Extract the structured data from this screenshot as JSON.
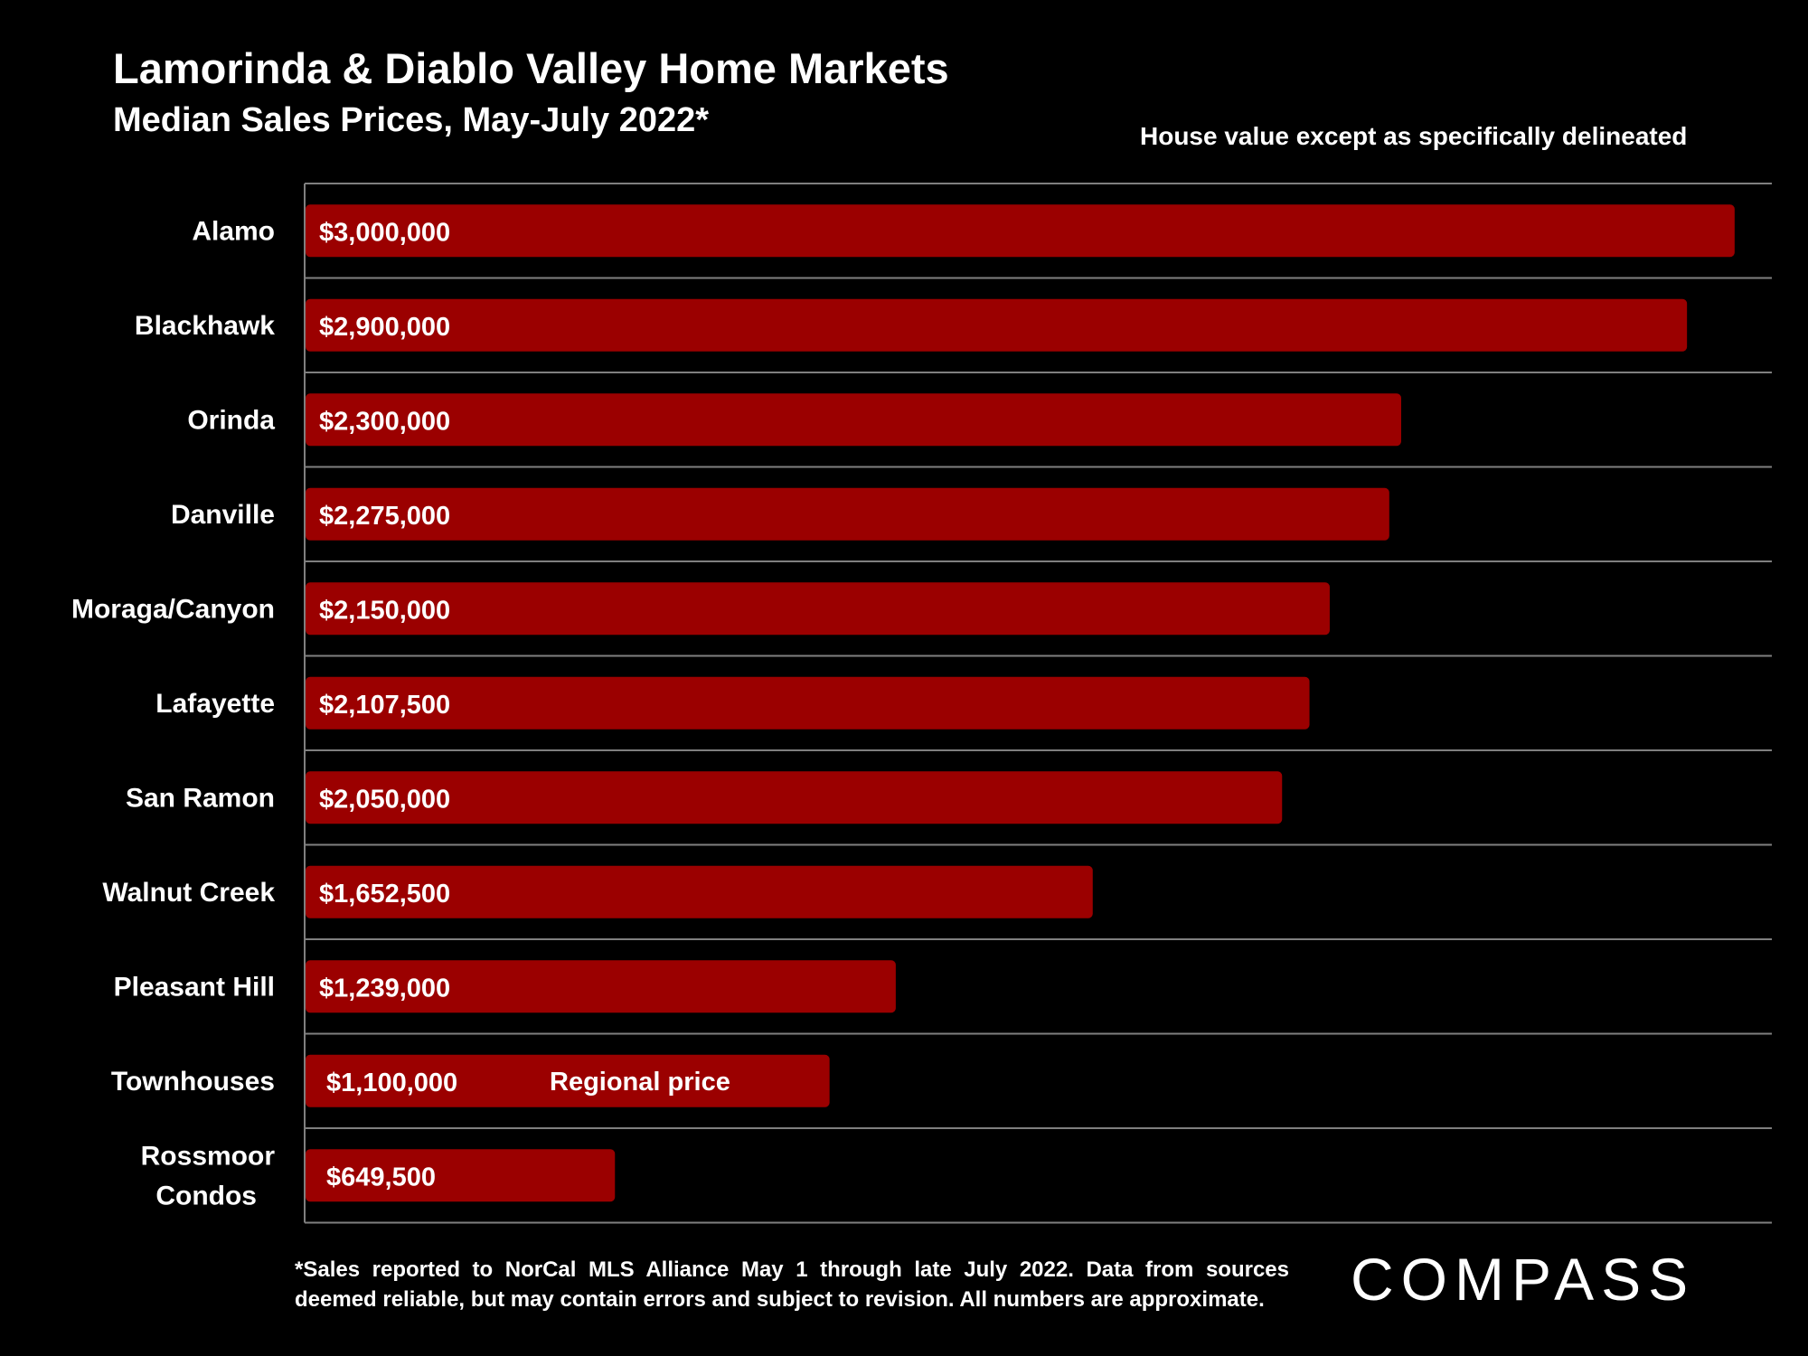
{
  "colors": {
    "background": "#000000",
    "bar": "#9b0000",
    "gridline": "#7f7f7f",
    "text": "#ffffff"
  },
  "header": {
    "title": "Lamorinda & Diablo Valley Home Markets",
    "subtitle": "Median Sales Prices, May-July 2022*",
    "note": "House value except as specifically delineated"
  },
  "footer": {
    "footnote": "*Sales reported to NorCal MLS Alliance May 1 through late July 2022. Data from sources deemed reliable, but may contain errors and subject to revision. All numbers are approximate.",
    "logo_text": "COMPASS"
  },
  "chart_data": {
    "type": "bar",
    "orientation": "horizontal",
    "title": "Lamorinda & Diablo Valley Home Markets",
    "subtitle": "Median Sales Prices, May-July 2022*",
    "xlim": [
      0,
      3080000
    ],
    "grid": true,
    "categories": [
      "Alamo",
      "Blackhawk",
      "Orinda",
      "Danville",
      "Moraga/Canyon",
      "Lafayette",
      "San Ramon",
      "Walnut Creek",
      "Pleasant Hill",
      "Townhouses",
      "Rossmoor Condos"
    ],
    "category_lines": [
      [
        "Alamo"
      ],
      [
        "Blackhawk"
      ],
      [
        "Orinda"
      ],
      [
        "Danville"
      ],
      [
        "Moraga/Canyon"
      ],
      [
        "Lafayette"
      ],
      [
        "San Ramon"
      ],
      [
        "Walnut Creek"
      ],
      [
        "Pleasant Hill"
      ],
      [
        "Townhouses"
      ],
      [
        "Rossmoor",
        "Condos"
      ]
    ],
    "values": [
      3000000,
      2900000,
      2300000,
      2275000,
      2150000,
      2107500,
      2050000,
      1652500,
      1239000,
      1100000,
      649500
    ],
    "data_labels": [
      "$3,000,000",
      "$2,900,000",
      "$2,300,000",
      "$2,275,000",
      "$2,150,000",
      "$2,107,500",
      "$2,050,000",
      "$1,652,500",
      "$1,239,000",
      "$1,100,000",
      "$649,500"
    ],
    "annotations": [
      {
        "category": "Townhouses",
        "text": "Regional price"
      }
    ]
  }
}
